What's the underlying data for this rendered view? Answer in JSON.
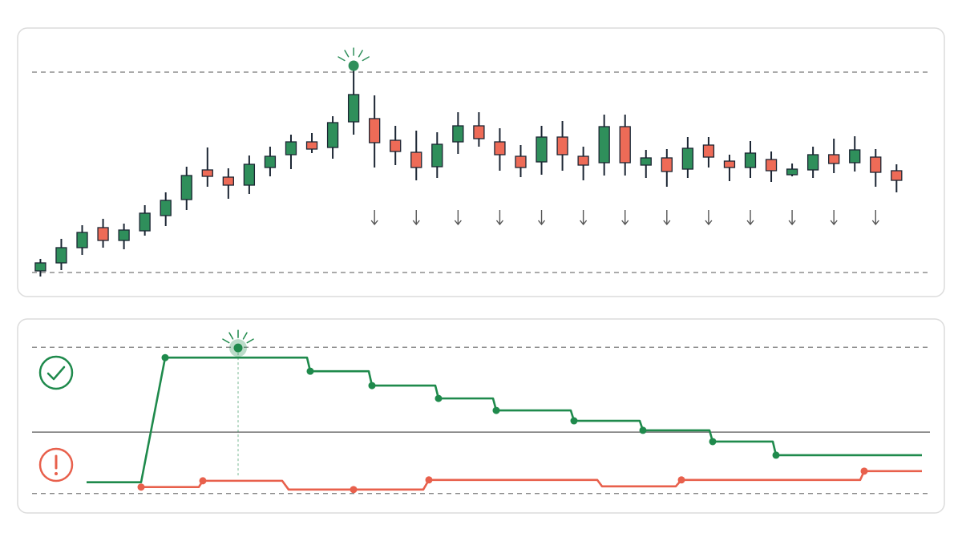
{
  "chart_data": [
    {
      "type": "candlestick",
      "open": [
        0.8,
        4.8,
        12.4,
        22.4,
        16,
        20.8,
        28.4,
        36.4,
        51.2,
        47.6,
        43.6,
        52.4,
        58.8,
        65.2,
        62.4,
        75.2,
        76.8,
        66,
        60,
        52.8,
        65.2,
        73.2,
        65.2,
        58,
        55.2,
        67.6,
        58,
        54.8,
        72.8,
        53.6,
        57.2,
        51.6,
        63.6,
        55.6,
        52.4,
        56.4,
        48.8,
        51.2,
        58.8,
        54.8,
        57.6,
        50.8
      ],
      "high": [
        6.8,
        16.8,
        23.6,
        26.8,
        24.4,
        33.6,
        40,
        52.8,
        62.4,
        52,
        58.4,
        62.8,
        68.8,
        69.6,
        78,
        100.8,
        88.4,
        73.2,
        70.8,
        70,
        80,
        80,
        72,
        63.6,
        73.2,
        75.6,
        62.8,
        78.8,
        78.8,
        61.2,
        61.6,
        67.6,
        67.6,
        58.8,
        65.6,
        60.4,
        54.4,
        62.8,
        66.8,
        68,
        61.6,
        54
      ],
      "low": [
        -2,
        1.2,
        8.8,
        12.4,
        11.6,
        18.4,
        23.2,
        31.2,
        42.8,
        36.8,
        39.2,
        48,
        51.6,
        59.6,
        56.8,
        68.8,
        52.4,
        53.6,
        46,
        47.2,
        59.2,
        62.8,
        50.8,
        47.6,
        48.8,
        50.8,
        46,
        48.4,
        48.4,
        47.2,
        42.8,
        47.2,
        52.4,
        45.6,
        47.2,
        45.2,
        48,
        47.2,
        49.6,
        50.4,
        42.8,
        40
      ],
      "close": [
        4.8,
        12.4,
        20,
        16,
        21.2,
        29.6,
        36,
        48.4,
        48,
        43.6,
        54,
        58,
        65.2,
        61.6,
        74.8,
        88.8,
        64.8,
        60.4,
        52.4,
        64,
        73.2,
        66.8,
        58.8,
        52.4,
        67.6,
        58.8,
        53.6,
        72.8,
        54.8,
        57.2,
        50.4,
        62,
        57.6,
        52.4,
        59.6,
        50.8,
        51.6,
        58.8,
        54.4,
        61.2,
        50,
        46
      ],
      "up_color": "#2f8f5b",
      "down_color": "#ee6b57",
      "xlim": [
        -0.4,
        42.6
      ],
      "ylim": [
        -8,
        110
      ],
      "reference_lines": [
        0,
        100
      ],
      "peak_marker": {
        "index": 15,
        "value": 103.2
      },
      "arrow_indices": [
        16,
        18,
        20,
        22,
        24,
        26,
        28,
        30,
        32,
        34,
        36,
        38,
        40
      ]
    },
    {
      "type": "step_line",
      "xlim": [
        0,
        1120
      ],
      "ylim": [
        -10,
        110
      ],
      "reference_lines": [
        0,
        100
      ],
      "threshold": 42,
      "series": [
        {
          "color": "#1f8a4c",
          "x": [
            68,
            136,
            166,
            343,
            347,
            420,
            424,
            503,
            507,
            575,
            579,
            672,
            676,
            758,
            762,
            845,
            849,
            924,
            928,
            1110
          ],
          "values": [
            7.7,
            7.7,
            92.9,
            92.9,
            83.6,
            83.6,
            73.8,
            73.8,
            65,
            65,
            56.8,
            56.8,
            49.7,
            49.7,
            43.2,
            43.2,
            35.5,
            35.5,
            26.2,
            26.2
          ],
          "markers": [
            2,
            4,
            6,
            8,
            10,
            12,
            14,
            16,
            18
          ]
        },
        {
          "color": "#e8604c",
          "x": [
            136,
            208,
            213,
            312,
            320,
            401,
            488,
            495,
            705,
            711,
            803,
            810,
            1033,
            1038,
            1110
          ],
          "values": [
            4.4,
            4.4,
            8.7,
            8.7,
            2.7,
            2.7,
            2.7,
            9.3,
            9.3,
            4.9,
            4.9,
            9.3,
            9.3,
            15.3,
            15.3
          ],
          "markers": [
            0,
            2,
            5,
            7,
            11,
            13
          ]
        }
      ],
      "highlight": {
        "x": 257,
        "y": 99.5
      }
    }
  ]
}
